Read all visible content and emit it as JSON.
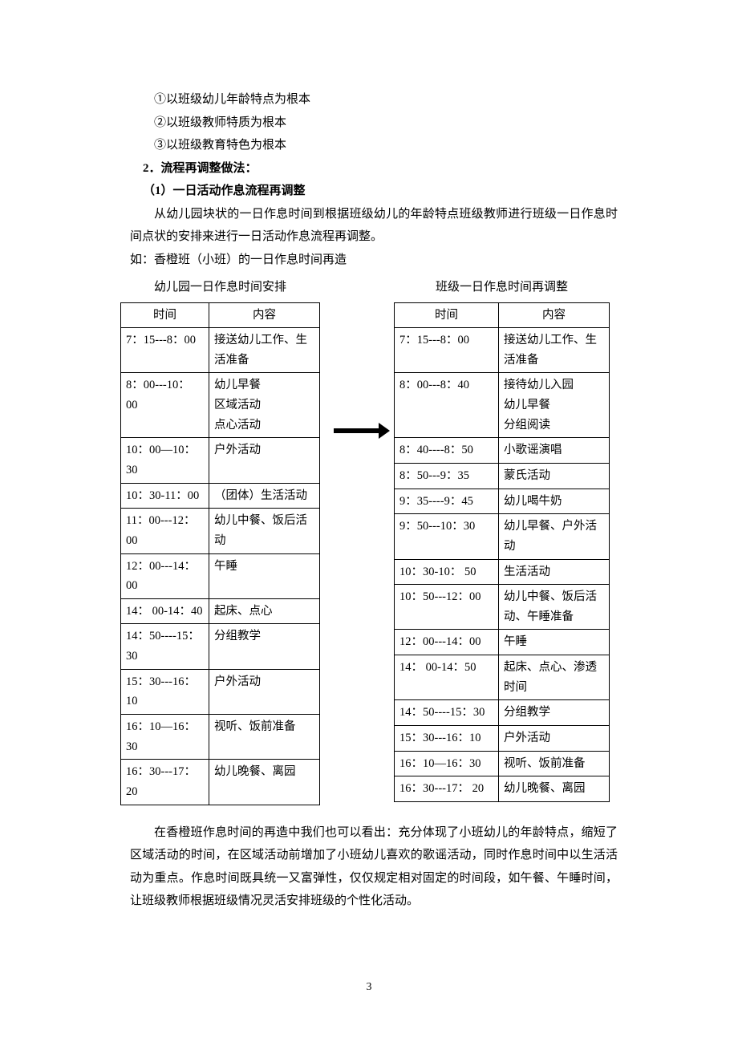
{
  "intro": {
    "li1": "①以班级幼儿年龄特点为根本",
    "li2": "②以班级教师特质为根本",
    "li3": "③以班级教育特色为根本",
    "heading2": "2．流程再调整做法：",
    "sub1": "（1）一日活动作息流程再调整",
    "p1": "从幼儿园块状的一日作息时间到根据班级幼儿的年龄特点班级教师进行班级一日作息时间点状的安排来进行一日活动作息流程再调整。",
    "p2": "如：香橙班（小班）的一日作息时间再造"
  },
  "left_table": {
    "caption": "幼儿园一日作息时间安排",
    "headers": {
      "time": "时间",
      "content": "内容"
    },
    "rows": [
      {
        "t": "7：15---8：00",
        "c": "接送幼儿工作、生活准备"
      },
      {
        "t": "8：00---10： 00",
        "c": "幼儿早餐\n区域活动\n点心活动"
      },
      {
        "t": "10：00—10：30",
        "c": "户外活动"
      },
      {
        "t": "10：30-11：00",
        "c": "（团体）生活活动"
      },
      {
        "t": "11：00---12：00",
        "c": "幼儿中餐、饭后活动"
      },
      {
        "t": "12：00---14：00",
        "c": "午睡"
      },
      {
        "t": "14： 00-14：40",
        "c": "起床、点心"
      },
      {
        "t": "14：50----15：30",
        "c": "分组教学"
      },
      {
        "t": "15：30---16：10",
        "c": "户外活动"
      },
      {
        "t": "16：10—16：30",
        "c": "视听、饭前准备"
      },
      {
        "t": "16：30---17： 20",
        "c": "幼儿晚餐、离园"
      }
    ]
  },
  "right_table": {
    "caption": "班级一日作息时间再调整",
    "headers": {
      "time": "时间",
      "content": "内容"
    },
    "rows": [
      {
        "t": "7：15---8：00",
        "c": "接送幼儿工作、生活准备"
      },
      {
        "t": "8：00---8：40",
        "c": "接待幼儿入园\n幼儿早餐\n分组阅读"
      },
      {
        "t": "8：40----8：50",
        "c": "小歌谣演唱"
      },
      {
        "t": "8：50---9：35",
        "c": "蒙氏活动"
      },
      {
        "t": "9：35----9：45",
        "c": "幼儿喝牛奶"
      },
      {
        "t": "9：50---10：30",
        "c": "幼儿早餐、户外活动"
      },
      {
        "t": "10：30-10： 50",
        "c": "生活活动"
      },
      {
        "t": "10：50---12：00",
        "c": "幼儿中餐、饭后活动、午睡准备"
      },
      {
        "t": "12：00---14：00",
        "c": "午睡"
      },
      {
        "t": "14： 00-14：50",
        "c": "起床、点心、渗透时间"
      },
      {
        "t": "14：50----15：30",
        "c": "分组教学"
      },
      {
        "t": "15：30---16：10",
        "c": "户外活动"
      },
      {
        "t": "16：10—16：30",
        "c": "视听、饭前准备"
      },
      {
        "t": "16：30---17： 20",
        "c": "幼儿晚餐、离园"
      }
    ]
  },
  "conclusion": {
    "p": "在香橙班作息时间的再造中我们也可以看出：充分体现了小班幼儿的年龄特点，缩短了区域活动的时间，在区域活动前增加了小班幼儿喜欢的歌谣活动，同时作息时间中以生活活动为重点。作息时间既具统一又富弹性，仅仅规定相对固定的时间段，如午餐、午睡时间，让班级教师根据班级情况灵活安排班级的个性化活动。"
  },
  "page_number": "3"
}
